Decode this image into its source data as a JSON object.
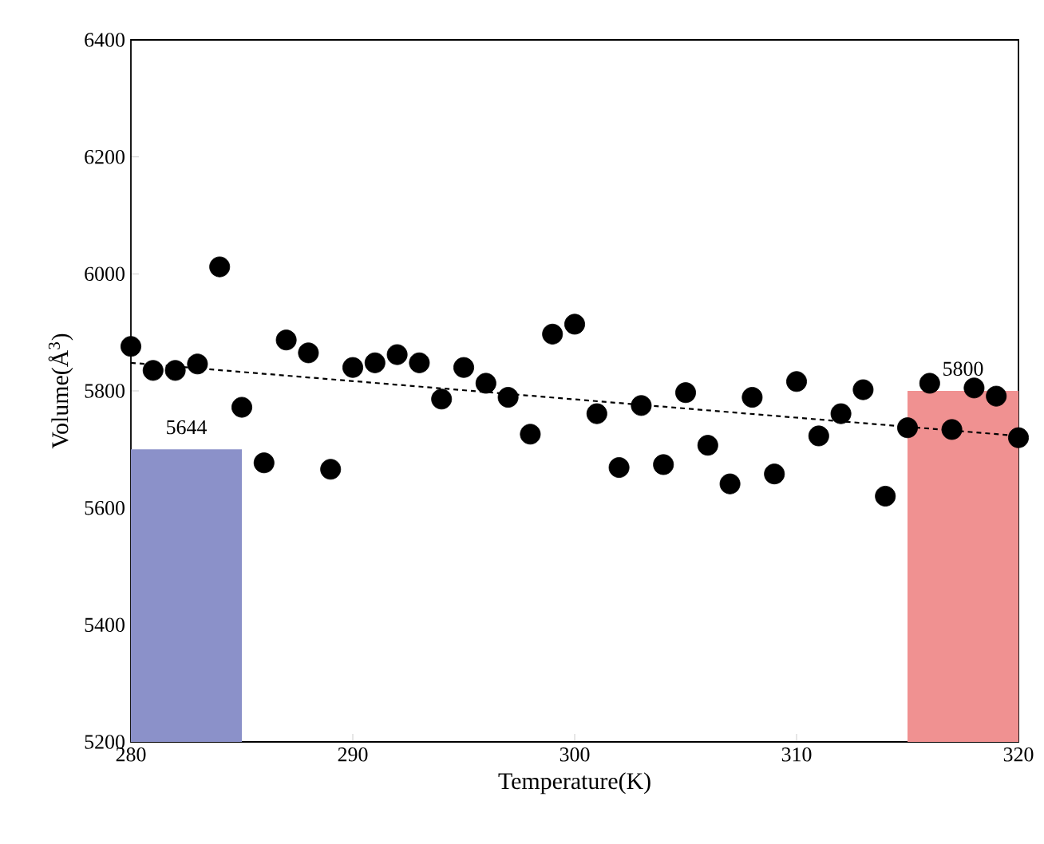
{
  "chart_data": {
    "type": "scatter",
    "xlabel": "Temperature(K)",
    "ylabel": "Volume(Å$^{3}$)",
    "xlim": [
      280,
      320
    ],
    "ylim": [
      5200,
      6400
    ],
    "xticks": [
      280,
      290,
      300,
      310,
      320
    ],
    "yticks": [
      5200,
      5400,
      5600,
      5800,
      6000,
      6200,
      6400
    ],
    "grid": false,
    "series": [
      {
        "type": "histogram",
        "color": "#8b91c9",
        "bins": [
          280,
          285
        ],
        "values": [
          5700
        ]
      },
      {
        "type": "histogram",
        "color": "#f09191",
        "bins": [
          315,
          320
        ],
        "values": [
          5800
        ]
      },
      {
        "type": "scatter",
        "marker": "circle",
        "color": "#000000",
        "x": [
          280,
          281,
          282,
          283,
          284,
          285,
          286,
          287,
          288,
          289,
          290,
          291,
          292,
          293,
          294,
          295,
          296,
          297,
          298,
          299,
          300,
          301,
          302,
          303,
          304,
          305,
          306,
          307,
          308,
          309,
          310,
          311,
          312,
          313,
          314,
          315,
          316,
          317,
          318,
          319,
          320
        ],
        "values": [
          5876,
          5835,
          5835,
          5846,
          6012,
          5772,
          5677,
          5887,
          5865,
          5666,
          5840,
          5848,
          5862,
          5848,
          5786,
          5840,
          5813,
          5789,
          5726,
          5897,
          5914,
          5761,
          5669,
          5775,
          5674,
          5797,
          5707,
          5641,
          5789,
          5658,
          5816,
          5723,
          5761,
          5802,
          5620,
          5737,
          5813,
          5734,
          5805,
          5791,
          5720
        ]
      },
      {
        "type": "line",
        "color": "#000000",
        "line_style": "dashed",
        "marker": "none",
        "x": [
          280,
          320
        ],
        "values": [
          5848,
          5723
        ]
      }
    ],
    "annotations": [
      {
        "text": "5644",
        "x": 282.5,
        "y": 5700
      },
      {
        "text": "5800",
        "x": 317.5,
        "y": 5800
      }
    ]
  }
}
